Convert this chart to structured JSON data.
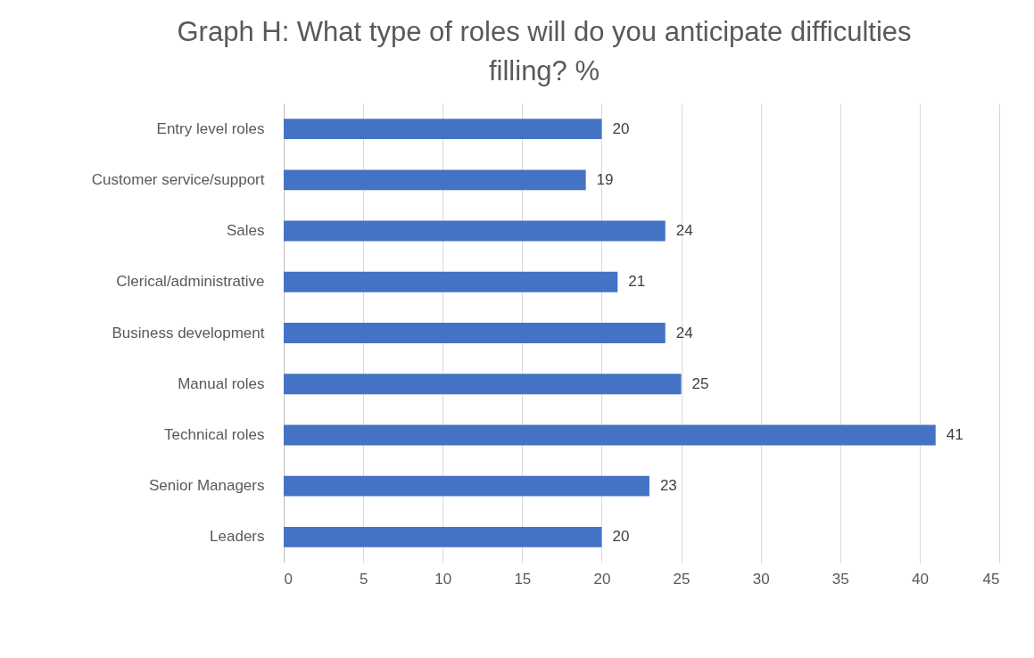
{
  "chart_data": {
    "type": "bar",
    "title": "Graph H: What type of roles will do you anticipate difficulties filling? %",
    "orientation": "horizontal",
    "categories": [
      "Entry level roles",
      "Customer service/support",
      "Sales",
      "Clerical/administrative",
      "Business development",
      "Manual roles",
      "Technical roles",
      "Senior Managers",
      "Leaders"
    ],
    "values": [
      20,
      19,
      24,
      21,
      24,
      25,
      41,
      23,
      20
    ],
    "color": "#4472c4",
    "xlim": [
      0,
      45
    ],
    "xticks": [
      0,
      5,
      10,
      15,
      20,
      25,
      30,
      35,
      40,
      45
    ],
    "grid": "x",
    "data_labels": true
  }
}
